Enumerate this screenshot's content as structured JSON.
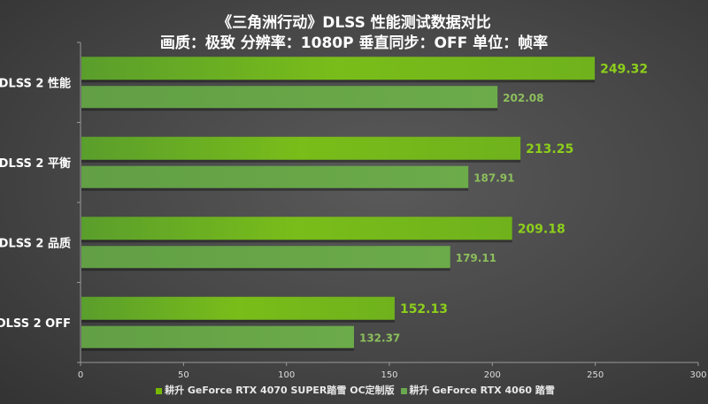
{
  "chart_data": {
    "type": "bar",
    "orientation": "horizontal",
    "title": "《三角洲行动》DLSS 性能测试数据对比",
    "subtitle": "画质：极致 分辨率：1080P 垂直同步：OFF 单位：帧率",
    "categories": [
      "DLSS 2 性能",
      "DLSS 2 平衡",
      "DLSS 2 品质",
      "DLSS 2 OFF"
    ],
    "series": [
      {
        "name": "耕升 GeForce RTX 4070 SUPER踏雪 OC定制版",
        "values": [
          249.32,
          213.25,
          209.18,
          152.13
        ],
        "color": "#76b900"
      },
      {
        "name": "耕升 GeForce RTX 4060 踏雪",
        "values": [
          202.08,
          187.91,
          179.11,
          132.37
        ],
        "color": "#6aa84f"
      }
    ],
    "xlim": [
      0,
      300
    ],
    "xticks": [
      "0",
      "50",
      "100",
      "150",
      "200",
      "250",
      "300"
    ],
    "grid": false,
    "legend_position": "bottom"
  }
}
